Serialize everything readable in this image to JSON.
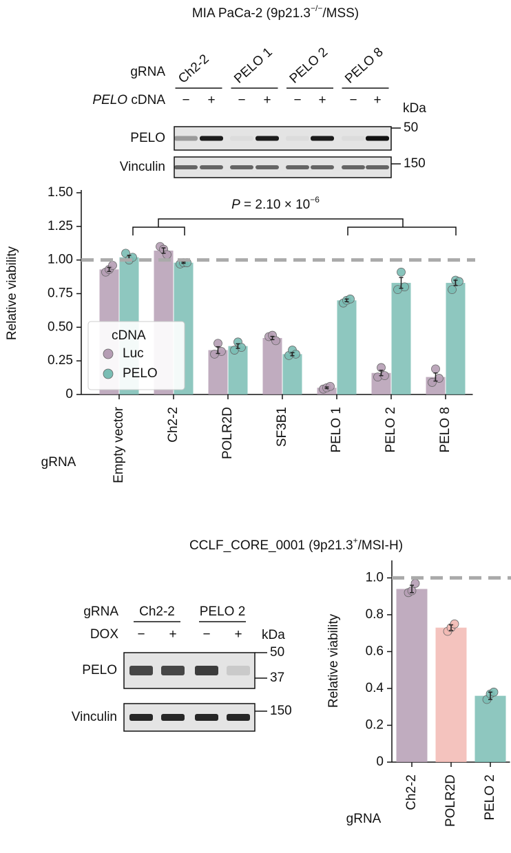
{
  "chart_data": [
    {
      "type": "bar",
      "title_parts": [
        "MIA PaCa-2 (9p21.3",
        "−/−",
        "/MSS)"
      ],
      "blot": {
        "grna_label": "gRNA",
        "grnas": [
          "Ch2-2",
          "PELO 1",
          "PELO 2",
          "PELO 8"
        ],
        "treatment_label_parts": [
          "PELO",
          " cDNA"
        ],
        "signs": [
          "−",
          "+",
          "−",
          "+",
          "−",
          "+",
          "−",
          "+"
        ],
        "kda_label": "kDa",
        "rows": [
          {
            "name": "PELO",
            "markers": [
              50
            ]
          },
          {
            "name": "Vinculin",
            "markers": [
              150
            ]
          }
        ]
      },
      "ylabel": "Relative viability",
      "xlabel": "gRNA",
      "categories": [
        "Empty vector",
        "Ch2-2",
        "POLR2D",
        "SF3B1",
        "PELO 1",
        "PELO 2",
        "PELO 8"
      ],
      "series": [
        {
          "name": "Luc",
          "color": "#b59db4",
          "values": [
            0.93,
            1.07,
            0.33,
            0.42,
            0.05,
            0.16,
            0.13
          ],
          "errors": [
            0.015,
            0.02,
            0.025,
            0.012,
            0.006,
            0.02,
            0.03
          ],
          "points": [
            [
              0.91,
              0.93,
              0.96
            ],
            [
              1.1,
              1.08,
              1.04
            ],
            [
              0.3,
              0.38,
              0.32
            ],
            [
              0.43,
              0.44,
              0.4
            ],
            [
              0.04,
              0.05,
              0.06
            ],
            [
              0.13,
              0.2,
              0.14
            ],
            [
              0.09,
              0.19,
              0.12
            ]
          ]
        },
        {
          "name": "PELO",
          "color": "#7abdb4",
          "values": [
            1.02,
            0.98,
            0.36,
            0.3,
            0.7,
            0.83,
            0.83
          ],
          "errors": [
            0.015,
            0.005,
            0.017,
            0.012,
            0.01,
            0.04,
            0.02
          ],
          "points": [
            [
              1.05,
              1.0,
              1.02
            ],
            [
              0.97,
              0.98,
              0.98
            ],
            [
              0.33,
              0.39,
              0.35
            ],
            [
              0.29,
              0.33,
              0.3
            ],
            [
              0.68,
              0.7,
              0.71
            ],
            [
              0.78,
              0.91,
              0.8
            ],
            [
              0.78,
              0.85,
              0.84
            ]
          ]
        }
      ],
      "ylim": [
        0,
        1.5
      ],
      "yticks": [
        0,
        0.25,
        {
          "value": 0.5,
          "label": "0.50"
        },
        0.75,
        {
          "value": 1,
          "label": "1.00"
        },
        1.25,
        {
          "value": 1.5,
          "label": "1.50"
        }
      ],
      "reference_line": 1,
      "legend_title": "cDNA",
      "legend": "lower left",
      "annotation_parts": [
        "P",
        " = 2.10 × 10",
        "−6"
      ]
    },
    {
      "type": "bar",
      "title_parts": [
        "CCLF_CORE_0001 (9p21.3",
        "+",
        "/MSI-H)"
      ],
      "blot": {
        "grna_label": "gRNA",
        "grnas": [
          "Ch2-2",
          "PELO 2"
        ],
        "treatment_label_parts": [
          "DOX"
        ],
        "signs": [
          "−",
          "+",
          "−",
          "+"
        ],
        "kda_label": "kDa",
        "rows": [
          {
            "name": "PELO",
            "markers": [
              50,
              37
            ]
          },
          {
            "name": "Vinculin",
            "markers": [
              150
            ]
          }
        ]
      },
      "ylabel": "Relative viability",
      "xlabel": "gRNA",
      "categories": [
        "Ch2-2",
        "POLR2D",
        "PELO 2"
      ],
      "values": [
        0.94,
        0.73,
        0.36
      ],
      "colors": [
        "#b59db4",
        "#f2b9b3",
        "#7abdb4"
      ],
      "errors": [
        0.02,
        0.015,
        0.02
      ],
      "points": [
        [
          0.92,
          0.93,
          0.97
        ],
        [
          0.71,
          0.73,
          0.75
        ],
        [
          0.34,
          0.37,
          0.38
        ]
      ],
      "ylim": [
        0,
        1.08
      ],
      "yticks": [
        0,
        0.2,
        0.4,
        0.6,
        0.8,
        {
          "value": 1,
          "label": "1.0"
        }
      ],
      "reference_line": 1
    }
  ]
}
